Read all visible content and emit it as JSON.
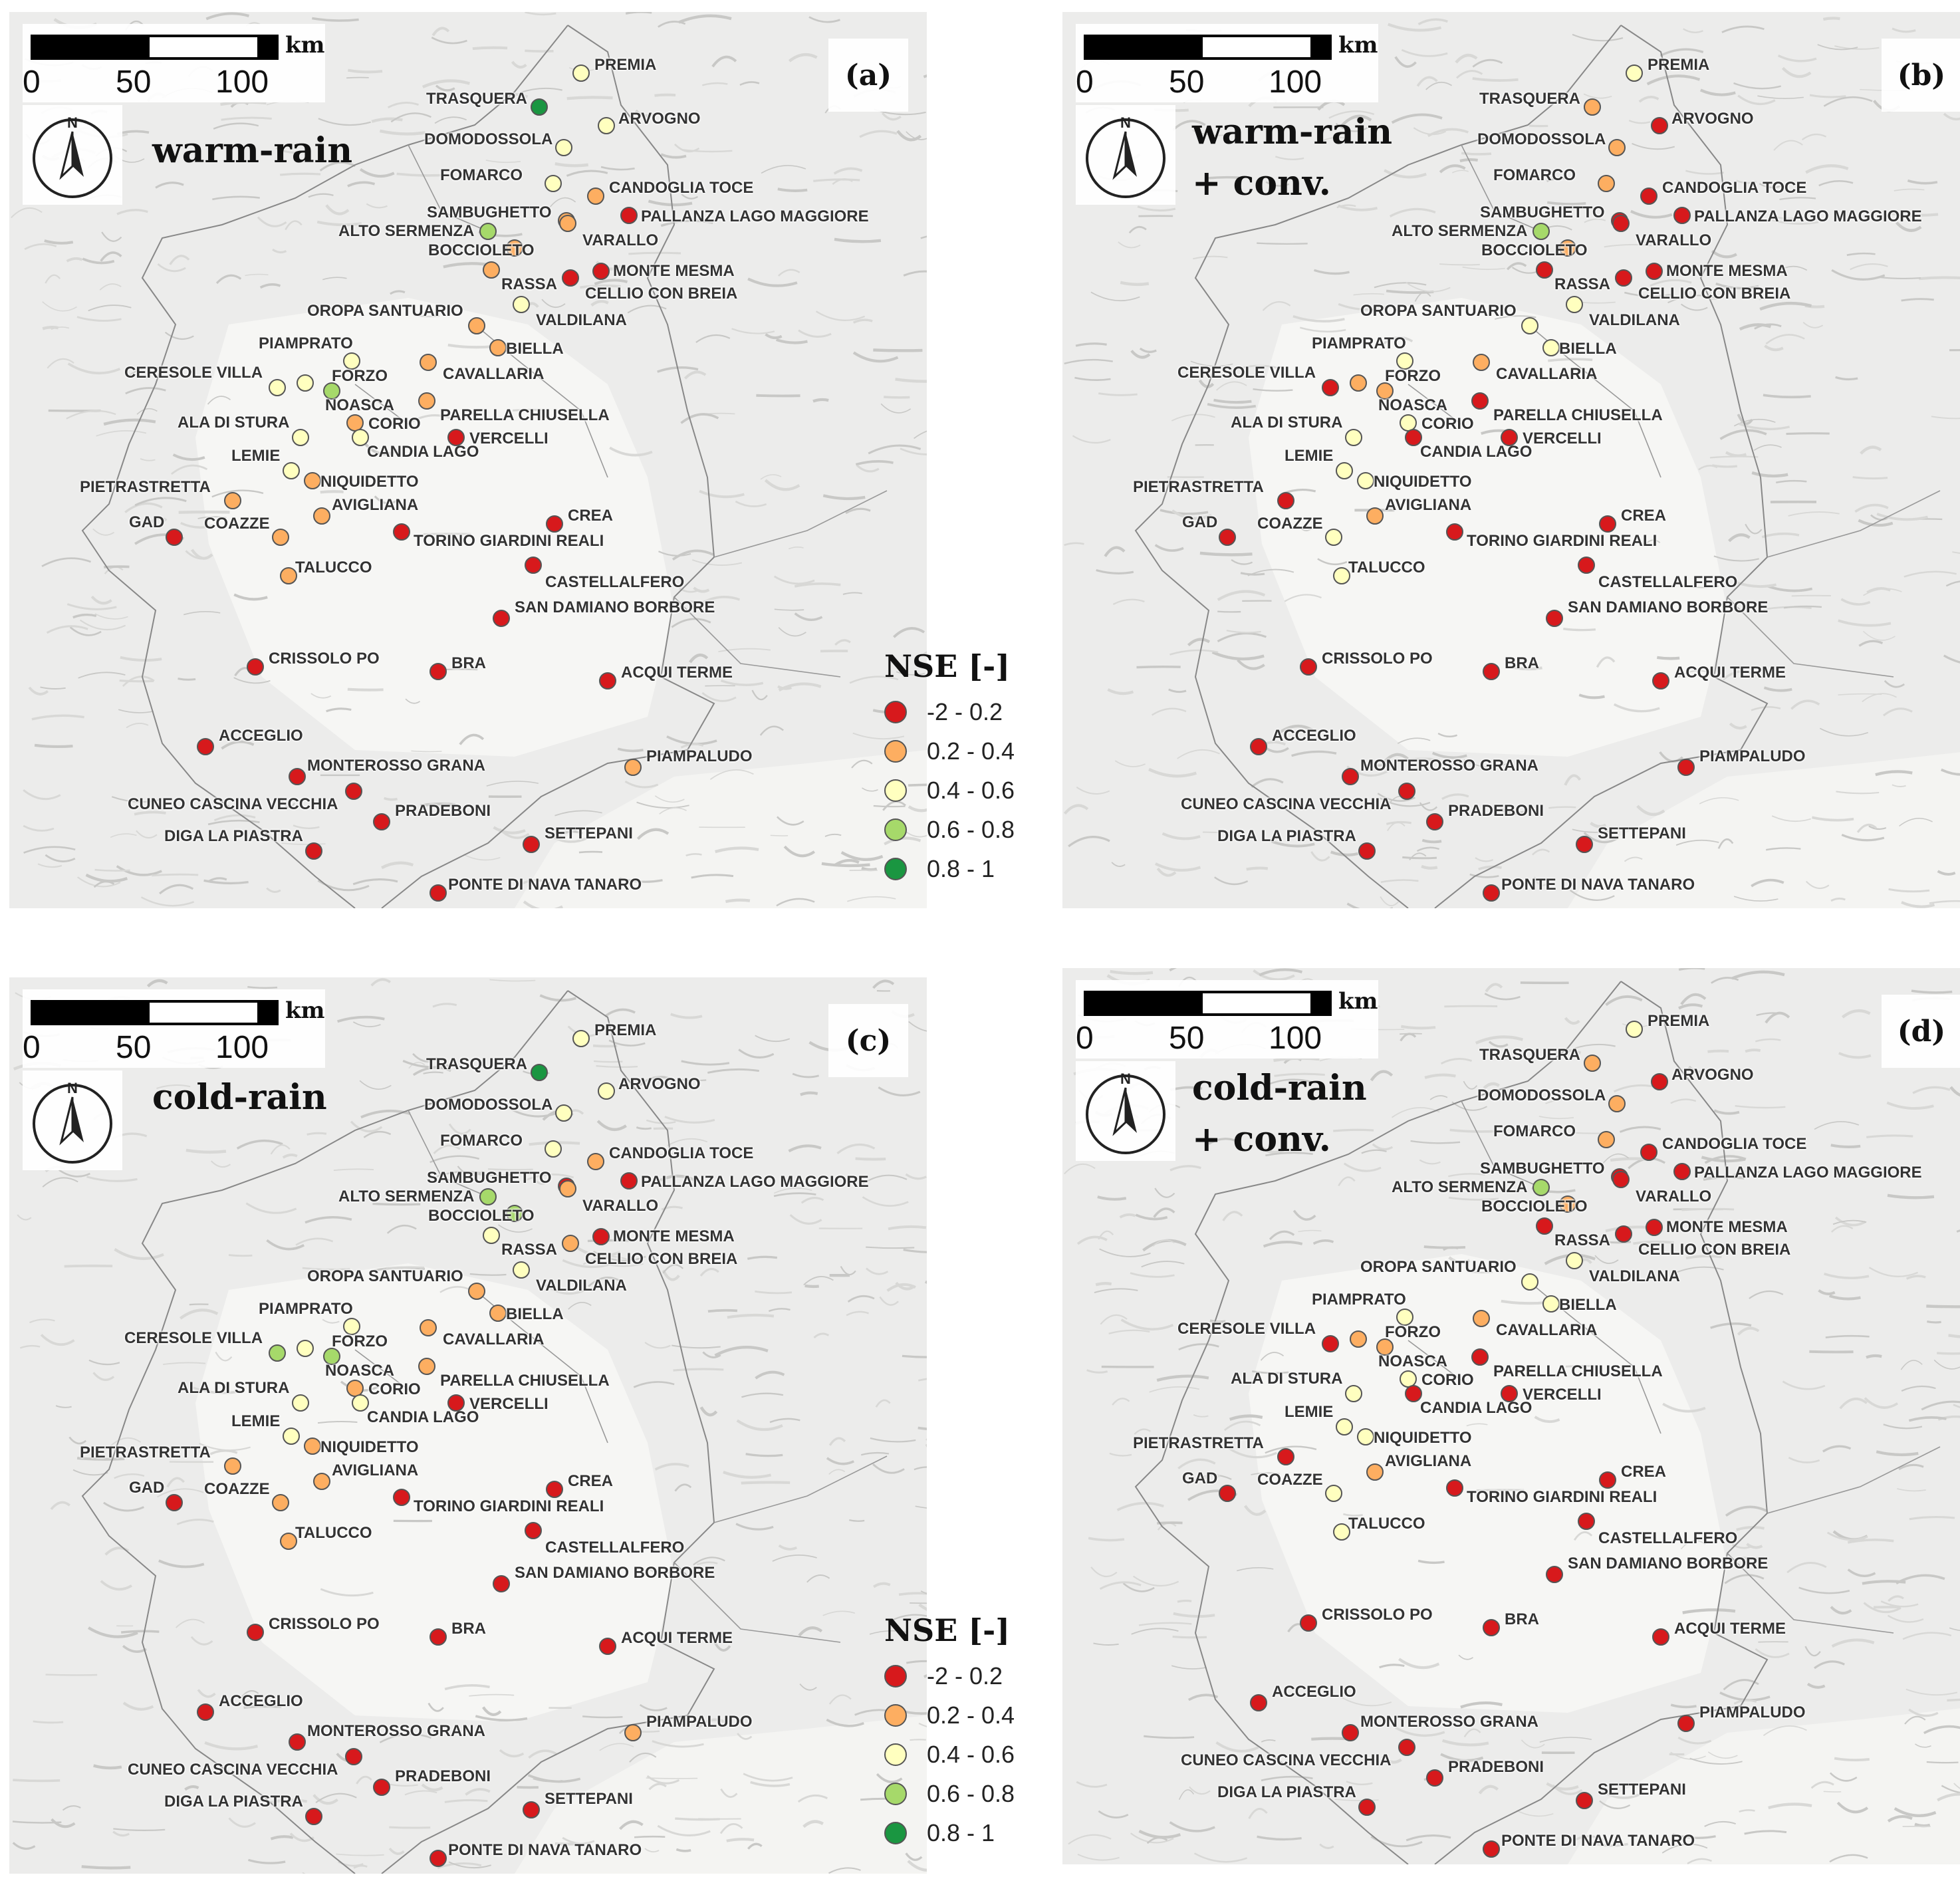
{
  "legend": {
    "title": "NSE [-]",
    "classes": [
      {
        "label": "-2 - 0.2",
        "color": "#d7191c"
      },
      {
        "label": "0.2 - 0.4",
        "color": "#fdae61"
      },
      {
        "label": "0.4 - 0.6",
        "color": "#ffffbf"
      },
      {
        "label": "0.6 - 0.8",
        "color": "#a6d96a"
      },
      {
        "label": "0.8 - 1",
        "color": "#1a9641"
      }
    ]
  },
  "scalebar": {
    "ticks": [
      "0",
      "50",
      "100"
    ],
    "unit": "km"
  },
  "north_label": "N",
  "stations": [
    "PREMIA",
    "TRASQUERA",
    "ARVOGNO",
    "DOMODOSSOLA",
    "FOMARCO",
    "CANDOGLIA TOCE",
    "SAMBUGHETTO",
    "PALLANZA LAGO MAGGIORE",
    "ALTO SERMENZA",
    "VARALLO",
    "BOCCIOLETO",
    "MONTE MESMA",
    "RASSA",
    "CELLIO CON BREIA",
    "VALDILANA",
    "OROPA SANTUARIO",
    "BIELLA",
    "PIAMPRATO",
    "CERESOLE VILLA",
    "FORZO",
    "CAVALLARIA",
    "NOASCA",
    "PARELLA CHIUSELLA",
    "ALA DI STURA",
    "CORIO",
    "CANDIA LAGO",
    "VERCELLI",
    "LEMIE",
    "NIQUIDETTO",
    "PIETRASTRETTA",
    "AVIGLIANA",
    "CREA",
    "GAD",
    "COAZZE",
    "TORINO GIARDINI REALI",
    "TALUCCO",
    "CASTELLALFERO",
    "SAN DAMIANO BORBORE",
    "CRISSOLO PO",
    "BRA",
    "ACQUI TERME",
    "ACCEGLIO",
    "PIAMPALUDO",
    "MONTEROSSO GRANA",
    "CUNEO CASCINA VECCHIA",
    "PRADEBONI",
    "SETTEPANI",
    "DIGA LA PIASTRA",
    "PONTE DI NAVA TANARO"
  ],
  "panels": [
    {
      "letter": "(a)",
      "scheme_line1": "warm-rain",
      "scheme_line2": "",
      "show_legend": true,
      "nse_class": [
        2,
        4,
        2,
        2,
        2,
        1,
        1,
        0,
        3,
        1,
        1,
        0,
        1,
        0,
        2,
        1,
        1,
        2,
        2,
        2,
        1,
        3,
        1,
        2,
        1,
        2,
        0,
        2,
        1,
        1,
        1,
        0,
        0,
        1,
        0,
        1,
        0,
        0,
        0,
        0,
        0,
        0,
        1,
        0,
        0,
        0,
        0,
        0,
        0
      ]
    },
    {
      "letter": "(b)",
      "scheme_line1": "warm-rain",
      "scheme_line2": "+ conv.",
      "show_legend": false,
      "nse_class": [
        2,
        1,
        0,
        1,
        1,
        0,
        0,
        0,
        3,
        0,
        1,
        0,
        0,
        0,
        2,
        2,
        2,
        2,
        0,
        1,
        1,
        1,
        0,
        2,
        2,
        0,
        0,
        2,
        2,
        0,
        1,
        0,
        0,
        2,
        0,
        2,
        0,
        0,
        0,
        0,
        0,
        0,
        0,
        0,
        0,
        0,
        0,
        0,
        0
      ]
    },
    {
      "letter": "(c)",
      "scheme_line1": "cold-rain",
      "scheme_line2": "",
      "show_legend": true,
      "nse_class": [
        2,
        4,
        2,
        2,
        2,
        1,
        0,
        0,
        3,
        1,
        3,
        0,
        2,
        1,
        2,
        1,
        1,
        2,
        3,
        2,
        1,
        3,
        1,
        2,
        1,
        2,
        0,
        2,
        1,
        1,
        1,
        0,
        0,
        1,
        0,
        1,
        0,
        0,
        0,
        0,
        0,
        0,
        1,
        0,
        0,
        0,
        0,
        0,
        0
      ]
    },
    {
      "letter": "(d)",
      "scheme_line1": "cold-rain",
      "scheme_line2": "+ conv.",
      "show_legend": false,
      "nse_class": [
        2,
        1,
        0,
        1,
        1,
        0,
        0,
        0,
        3,
        0,
        1,
        0,
        0,
        0,
        2,
        2,
        2,
        2,
        0,
        1,
        1,
        1,
        0,
        2,
        2,
        0,
        0,
        2,
        2,
        0,
        1,
        0,
        0,
        2,
        0,
        2,
        0,
        0,
        0,
        0,
        0,
        0,
        0,
        0,
        0,
        0,
        0,
        0,
        0
      ]
    }
  ]
}
